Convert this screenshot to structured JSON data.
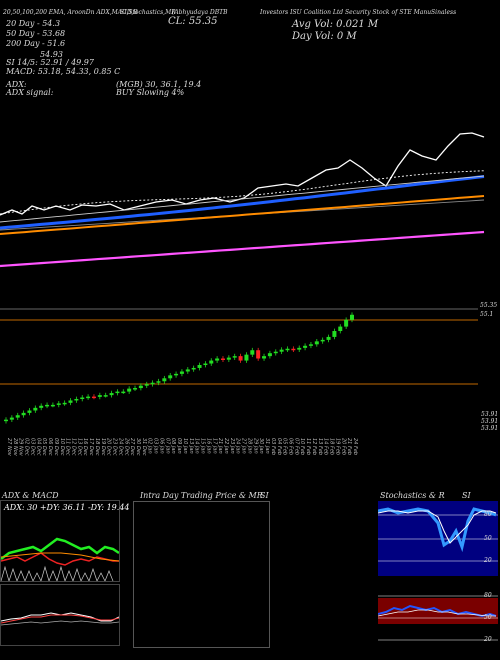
{
  "header": {
    "top_line_left": "20,50,100,200 EMA, AroonDn ADX,MACD,B",
    "top_line_mid": "SI,Stochastics,MR",
    "top_line_mid2": "(Abhyudaya DBTB",
    "top_line_right": "Investors ISU Coalition Ltd Security Stock of STE ManuSinaless",
    "ema20": "20 Day - 54.3",
    "ema50": "50 Day - 53.68",
    "ema200": "200 Day - 51.6",
    "price_line": "54.93",
    "si_line": "SI 14/5: 52.91 / 49.97",
    "macd_line": "MACD: 53.18, 54.33, 0.85 C",
    "cl": "CL: 55.35",
    "avg_vol": "Avg Vol: 0.021 M",
    "day_vol": "Day Vol: 0 M",
    "adx_label": "ADX:",
    "adx_signal_label": "ADX signal:",
    "adx_value": "(MGB) 30, 36.1, 19.4",
    "adx_signal": "BUY Slowing 4%"
  },
  "price_axis": {
    "top_labels": [
      "55.35",
      "55.1"
    ],
    "bottom_labels": [
      "53.91",
      "53.91",
      "53.91"
    ]
  },
  "x_axis_dates": [
    "27 Nov",
    "28 Nov",
    "29 Nov",
    "02 Dec",
    "03 Dec",
    "04 Dec",
    "05 Dec",
    "06 Dec",
    "09 Dec",
    "10 Dec",
    "11 Dec",
    "12 Dec",
    "13 Dec",
    "16 Dec",
    "17 Dec",
    "18 Dec",
    "19 Dec",
    "20 Dec",
    "23 Dec",
    "24 Dec",
    "26 Dec",
    "27 Dec",
    "30 Dec",
    "31 Dec",
    "02 Jan",
    "03 Jan",
    "06 Jan",
    "07 Jan",
    "08 Jan",
    "09 Jan",
    "10 Jan",
    "13 Jan",
    "14 Jan",
    "15 Jan",
    "16 Jan",
    "17 Jan",
    "21 Jan",
    "22 Jan",
    "23 Jan",
    "24 Jan",
    "27 Jan",
    "28 Jan",
    "29 Jan",
    "30 Jan",
    "31 Jan",
    "03 Feb",
    "04 Feb",
    "05 Feb",
    "06 Feb",
    "07 Feb",
    "10 Feb",
    "11 Feb",
    "12 Feb",
    "13 Feb",
    "14 Feb",
    "18 Feb",
    "19 Feb",
    "20 Feb",
    "21 Feb",
    "24 Feb"
  ],
  "adx_panel": {
    "title": "ADX & MACD",
    "readout": "ADX: 30 +DY: 36.11 -DY: 19.44"
  },
  "intraday_panel": {
    "title": "Intra Day Trading Price & MR",
    "title_si": "SI"
  },
  "stoch_panel": {
    "title": "Stochastics & R",
    "title_si": "SI",
    "levels": [
      "80",
      "50",
      "20"
    ],
    "si_levels": [
      "80",
      "50",
      "20"
    ]
  },
  "colors": {
    "background": "#000000",
    "ema20": "#ffffff",
    "ema50": "#1f5fff",
    "ema100": "#cccccc",
    "ema200": "#ff8c00",
    "long_ma": "#ff55ff",
    "candle_up": "#22dd22",
    "candle_down": "#ff2222",
    "stoch_fast": "#3399ff",
    "stoch_bg": "#000080",
    "si_bg": "#7a0000"
  },
  "chart_data": {
    "type": "candlestick",
    "closes": [
      51.55,
      51.62,
      51.7,
      51.78,
      51.86,
      51.95,
      52.02,
      52.05,
      52.05,
      52.1,
      52.12,
      52.2,
      52.25,
      52.3,
      52.33,
      52.32,
      52.38,
      52.38,
      52.45,
      52.5,
      52.5,
      52.6,
      52.62,
      52.7,
      52.75,
      52.8,
      52.85,
      52.95,
      53.05,
      53.1,
      53.18,
      53.25,
      53.3,
      53.4,
      53.45,
      53.55,
      53.62,
      53.58,
      53.65,
      53.7,
      53.55,
      53.75,
      53.9,
      53.62,
      53.7,
      53.8,
      53.85,
      53.92,
      53.95,
      53.92,
      53.98,
      54.05,
      54.1,
      54.2,
      54.25,
      54.35,
      54.55,
      54.7,
      54.93,
      55.1
    ],
    "ema_title": "20,50,100,200 EMA"
  }
}
